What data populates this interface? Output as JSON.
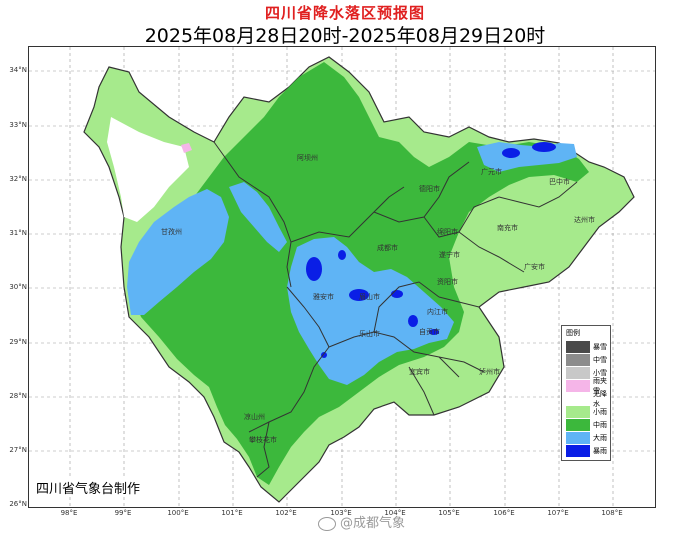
{
  "title": "四川省降水落区预报图",
  "subtitle": "2025年08月28日20时-2025年08月29日20时",
  "credit": "四川省气象台制作",
  "watermark": "@成都气象",
  "lat_labels": [
    "34°N",
    "33°N",
    "32°N",
    "31°N",
    "30°N",
    "29°N",
    "28°N",
    "27°N",
    "26°N"
  ],
  "lon_labels": [
    "98°E",
    "99°E",
    "100°E",
    "101°E",
    "102°E",
    "103°E",
    "104°E",
    "105°E",
    "106°E",
    "107°E",
    "108°E"
  ],
  "legend": {
    "title": "图例",
    "items": [
      {
        "label": "暴雪",
        "color": "#4a4a4a"
      },
      {
        "label": "中雪",
        "color": "#8c8c8c"
      },
      {
        "label": "小雪",
        "color": "#c8c8c8"
      },
      {
        "label": "雨夹雪",
        "color": "#f5b5e8"
      },
      {
        "label": "无降水",
        "color": "#ffffff"
      },
      {
        "label": "小雨",
        "color": "#a6ea8c"
      },
      {
        "label": "中雨",
        "color": "#3cb83c"
      },
      {
        "label": "大雨",
        "color": "#5fb4f5"
      },
      {
        "label": "暴雨",
        "color": "#0a1ee6"
      }
    ]
  },
  "cities": [
    "阿坝州",
    "甘孜州",
    "成都市",
    "德阳市",
    "绵阳市",
    "广元市",
    "巴中市",
    "达州市",
    "南充市",
    "遂宁市",
    "广安市",
    "资阳市",
    "雅安市",
    "眉山市",
    "乐山市",
    "内江市",
    "自贡市",
    "宜宾市",
    "泸州市",
    "凉山州",
    "攀枝花市"
  ],
  "colors": {
    "light_rain": "#a6ea8c",
    "moderate_rain": "#3cb83c",
    "heavy_rain": "#5fb4f5",
    "rainstorm": "#0a1ee6",
    "no_precip": "#ffffff",
    "sleet": "#f5b5e8",
    "border": "#333333",
    "title_red": "#e02020"
  }
}
